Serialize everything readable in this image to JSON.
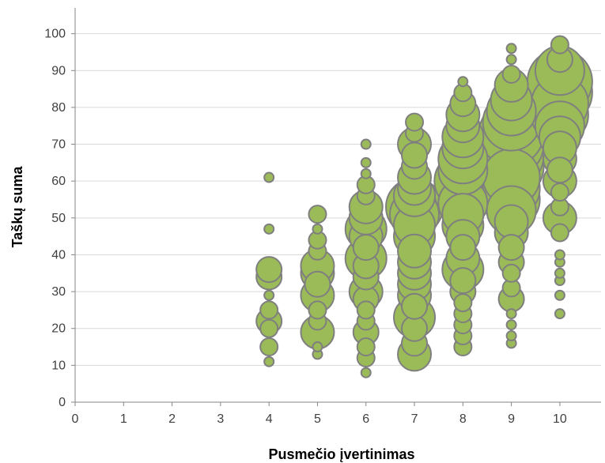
{
  "chart_data": {
    "type": "scatter",
    "subtype": "bubble",
    "title": "",
    "xlabel": "Pusmečio įvertinimas",
    "ylabel": "Taškų suma",
    "xlim": [
      0,
      10.85
    ],
    "ylim": [
      0,
      107
    ],
    "xticks": [
      0,
      1,
      2,
      3,
      4,
      5,
      6,
      7,
      8,
      9,
      10
    ],
    "yticks": [
      0,
      10,
      20,
      30,
      40,
      50,
      60,
      70,
      80,
      90,
      100
    ],
    "grid": "horizontal",
    "legend": "none",
    "colors": {
      "fill": "#9bbb59",
      "stroke": "#7f7f7f",
      "grid": "#d9d9d9",
      "axis": "#868686"
    },
    "series": [
      {
        "points": [
          {
            "x": 4,
            "y": 11,
            "s": 1
          },
          {
            "x": 4,
            "y": 15,
            "s": 2
          },
          {
            "x": 4,
            "y": 20,
            "s": 2
          },
          {
            "x": 4,
            "y": 22,
            "s": 3
          },
          {
            "x": 4,
            "y": 25,
            "s": 2
          },
          {
            "x": 4,
            "y": 29,
            "s": 1
          },
          {
            "x": 4,
            "y": 34,
            "s": 3
          },
          {
            "x": 4,
            "y": 36,
            "s": 3
          },
          {
            "x": 4,
            "y": 47,
            "s": 1
          },
          {
            "x": 4,
            "y": 61,
            "s": 1
          },
          {
            "x": 5,
            "y": 13,
            "s": 1
          },
          {
            "x": 5,
            "y": 15,
            "s": 1
          },
          {
            "x": 5,
            "y": 19,
            "s": 4
          },
          {
            "x": 5,
            "y": 22,
            "s": 2
          },
          {
            "x": 5,
            "y": 25,
            "s": 2
          },
          {
            "x": 5,
            "y": 29,
            "s": 4
          },
          {
            "x": 5,
            "y": 32,
            "s": 3
          },
          {
            "x": 5,
            "y": 35,
            "s": 4
          },
          {
            "x": 5,
            "y": 37,
            "s": 4
          },
          {
            "x": 5,
            "y": 41,
            "s": 2
          },
          {
            "x": 5,
            "y": 44,
            "s": 2
          },
          {
            "x": 5,
            "y": 47,
            "s": 1
          },
          {
            "x": 5,
            "y": 51,
            "s": 2
          },
          {
            "x": 6,
            "y": 8,
            "s": 1
          },
          {
            "x": 6,
            "y": 12,
            "s": 2
          },
          {
            "x": 6,
            "y": 15,
            "s": 2
          },
          {
            "x": 6,
            "y": 19,
            "s": 3
          },
          {
            "x": 6,
            "y": 22,
            "s": 2
          },
          {
            "x": 6,
            "y": 25,
            "s": 2
          },
          {
            "x": 6,
            "y": 28,
            "s": 3
          },
          {
            "x": 6,
            "y": 30,
            "s": 4
          },
          {
            "x": 6,
            "y": 34,
            "s": 3
          },
          {
            "x": 6,
            "y": 37,
            "s": 3
          },
          {
            "x": 6,
            "y": 39,
            "s": 5
          },
          {
            "x": 6,
            "y": 42,
            "s": 3
          },
          {
            "x": 6,
            "y": 45,
            "s": 4
          },
          {
            "x": 6,
            "y": 47,
            "s": 5
          },
          {
            "x": 6,
            "y": 50,
            "s": 4
          },
          {
            "x": 6,
            "y": 53,
            "s": 4
          },
          {
            "x": 6,
            "y": 56,
            "s": 2
          },
          {
            "x": 6,
            "y": 59,
            "s": 2
          },
          {
            "x": 6,
            "y": 62,
            "s": 1
          },
          {
            "x": 6,
            "y": 65,
            "s": 1
          },
          {
            "x": 6,
            "y": 70,
            "s": 1
          },
          {
            "x": 7,
            "y": 13,
            "s": 4
          },
          {
            "x": 7,
            "y": 16,
            "s": 3
          },
          {
            "x": 7,
            "y": 20,
            "s": 3
          },
          {
            "x": 7,
            "y": 23,
            "s": 5
          },
          {
            "x": 7,
            "y": 26,
            "s": 3
          },
          {
            "x": 7,
            "y": 29,
            "s": 4
          },
          {
            "x": 7,
            "y": 32,
            "s": 4
          },
          {
            "x": 7,
            "y": 35,
            "s": 4
          },
          {
            "x": 7,
            "y": 38,
            "s": 4
          },
          {
            "x": 7,
            "y": 41,
            "s": 4
          },
          {
            "x": 7,
            "y": 45,
            "s": 5
          },
          {
            "x": 7,
            "y": 48,
            "s": 5
          },
          {
            "x": 7,
            "y": 51,
            "s": 6
          },
          {
            "x": 7,
            "y": 53,
            "s": 7
          },
          {
            "x": 7,
            "y": 56,
            "s": 5
          },
          {
            "x": 7,
            "y": 58,
            "s": 4
          },
          {
            "x": 7,
            "y": 61,
            "s": 4
          },
          {
            "x": 7,
            "y": 64,
            "s": 3
          },
          {
            "x": 7,
            "y": 67,
            "s": 3
          },
          {
            "x": 7,
            "y": 70,
            "s": 4
          },
          {
            "x": 7,
            "y": 73,
            "s": 2
          },
          {
            "x": 7,
            "y": 76,
            "s": 2
          },
          {
            "x": 8,
            "y": 15,
            "s": 2
          },
          {
            "x": 8,
            "y": 18,
            "s": 2
          },
          {
            "x": 8,
            "y": 21,
            "s": 2
          },
          {
            "x": 8,
            "y": 24,
            "s": 2
          },
          {
            "x": 8,
            "y": 27,
            "s": 2
          },
          {
            "x": 8,
            "y": 30,
            "s": 3
          },
          {
            "x": 8,
            "y": 33,
            "s": 3
          },
          {
            "x": 8,
            "y": 36,
            "s": 5
          },
          {
            "x": 8,
            "y": 39,
            "s": 4
          },
          {
            "x": 8,
            "y": 42,
            "s": 3
          },
          {
            "x": 8,
            "y": 45,
            "s": 4
          },
          {
            "x": 8,
            "y": 48,
            "s": 5
          },
          {
            "x": 8,
            "y": 51,
            "s": 5
          },
          {
            "x": 8,
            "y": 54,
            "s": 6
          },
          {
            "x": 8,
            "y": 57,
            "s": 7
          },
          {
            "x": 8,
            "y": 60,
            "s": 7
          },
          {
            "x": 8,
            "y": 63,
            "s": 6
          },
          {
            "x": 8,
            "y": 66,
            "s": 6
          },
          {
            "x": 8,
            "y": 69,
            "s": 5
          },
          {
            "x": 8,
            "y": 72,
            "s": 5
          },
          {
            "x": 8,
            "y": 75,
            "s": 4
          },
          {
            "x": 8,
            "y": 78,
            "s": 4
          },
          {
            "x": 8,
            "y": 81,
            "s": 3
          },
          {
            "x": 8,
            "y": 84,
            "s": 2
          },
          {
            "x": 8,
            "y": 87,
            "s": 1
          },
          {
            "x": 9,
            "y": 16,
            "s": 1
          },
          {
            "x": 9,
            "y": 18,
            "s": 1
          },
          {
            "x": 9,
            "y": 21,
            "s": 1
          },
          {
            "x": 9,
            "y": 24,
            "s": 1
          },
          {
            "x": 9,
            "y": 28,
            "s": 3
          },
          {
            "x": 9,
            "y": 31,
            "s": 2
          },
          {
            "x": 9,
            "y": 35,
            "s": 2
          },
          {
            "x": 9,
            "y": 38,
            "s": 3
          },
          {
            "x": 9,
            "y": 42,
            "s": 3
          },
          {
            "x": 9,
            "y": 46,
            "s": 4
          },
          {
            "x": 9,
            "y": 49,
            "s": 4
          },
          {
            "x": 9,
            "y": 52,
            "s": 6
          },
          {
            "x": 9,
            "y": 55,
            "s": 7
          },
          {
            "x": 9,
            "y": 58,
            "s": 7
          },
          {
            "x": 9,
            "y": 61,
            "s": 7
          },
          {
            "x": 9,
            "y": 64,
            "s": 8
          },
          {
            "x": 9,
            "y": 67,
            "s": 8
          },
          {
            "x": 9,
            "y": 70,
            "s": 8
          },
          {
            "x": 9,
            "y": 73,
            "s": 8
          },
          {
            "x": 9,
            "y": 76,
            "s": 7
          },
          {
            "x": 9,
            "y": 79,
            "s": 6
          },
          {
            "x": 9,
            "y": 82,
            "s": 5
          },
          {
            "x": 9,
            "y": 86,
            "s": 4
          },
          {
            "x": 9,
            "y": 89,
            "s": 2
          },
          {
            "x": 9,
            "y": 93,
            "s": 1
          },
          {
            "x": 9,
            "y": 96,
            "s": 1
          },
          {
            "x": 10,
            "y": 24,
            "s": 1
          },
          {
            "x": 10,
            "y": 29,
            "s": 1
          },
          {
            "x": 10,
            "y": 33,
            "s": 1
          },
          {
            "x": 10,
            "y": 35,
            "s": 1
          },
          {
            "x": 10,
            "y": 38,
            "s": 1
          },
          {
            "x": 10,
            "y": 40,
            "s": 1
          },
          {
            "x": 10,
            "y": 46,
            "s": 2
          },
          {
            "x": 10,
            "y": 50,
            "s": 4
          },
          {
            "x": 10,
            "y": 53,
            "s": 2
          },
          {
            "x": 10,
            "y": 57,
            "s": 2
          },
          {
            "x": 10,
            "y": 60,
            "s": 4
          },
          {
            "x": 10,
            "y": 63,
            "s": 3
          },
          {
            "x": 10,
            "y": 66,
            "s": 4
          },
          {
            "x": 10,
            "y": 69,
            "s": 4
          },
          {
            "x": 10,
            "y": 72,
            "s": 5
          },
          {
            "x": 10,
            "y": 75,
            "s": 6
          },
          {
            "x": 10,
            "y": 78,
            "s": 7
          },
          {
            "x": 10,
            "y": 81,
            "s": 7
          },
          {
            "x": 10,
            "y": 84,
            "s": 8
          },
          {
            "x": 10,
            "y": 87,
            "s": 8
          },
          {
            "x": 10,
            "y": 90,
            "s": 6
          },
          {
            "x": 10,
            "y": 93,
            "s": 3
          },
          {
            "x": 10,
            "y": 97,
            "s": 2
          }
        ]
      }
    ]
  }
}
